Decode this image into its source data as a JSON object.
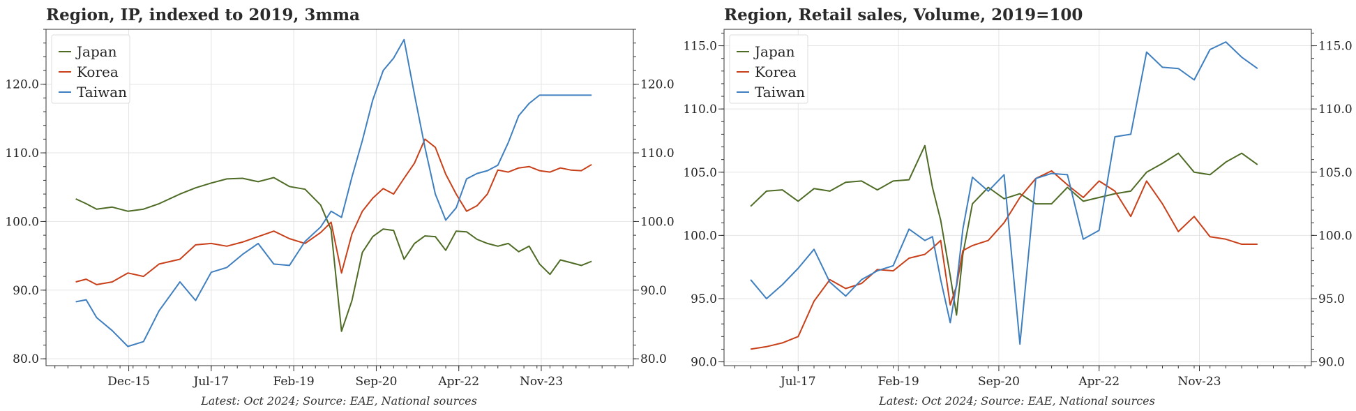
{
  "chart_data": [
    {
      "type": "line",
      "title": "Region, IP, indexed to 2019, 3mma",
      "source": "Latest: Oct 2024; Source: EAE, National sources",
      "ylim": [
        79,
        128
      ],
      "xlim": [
        2014.33,
        2025.6
      ],
      "grid": true,
      "legend": "top-left",
      "y_ticks": [
        80.0,
        90.0,
        100.0,
        110.0,
        120.0
      ],
      "y_tick_labels": [
        "80.0",
        "90.0",
        "100.0",
        "110.0",
        "120.0"
      ],
      "x_ticks": [
        2015.917,
        2017.5,
        2019.083,
        2020.667,
        2022.25,
        2023.833
      ],
      "x_tick_labels": [
        "Dec-15",
        "Jul-17",
        "Feb-19",
        "Sep-20",
        "Apr-22",
        "Nov-23"
      ],
      "series": [
        {
          "name": "Japan",
          "color": "#4e6b25",
          "x": [
            2014.9,
            2015.1,
            2015.3,
            2015.6,
            2015.9,
            2016.2,
            2016.5,
            2016.9,
            2017.2,
            2017.5,
            2017.8,
            2018.1,
            2018.4,
            2018.7,
            2019.0,
            2019.3,
            2019.6,
            2019.8,
            2020.0,
            2020.2,
            2020.4,
            2020.6,
            2020.8,
            2021.0,
            2021.2,
            2021.4,
            2021.6,
            2021.8,
            2022.0,
            2022.2,
            2022.4,
            2022.6,
            2022.8,
            2023.0,
            2023.2,
            2023.4,
            2023.6,
            2023.8,
            2024.0,
            2024.2,
            2024.4,
            2024.6,
            2024.8
          ],
          "values": [
            103.3,
            102.6,
            101.8,
            102.1,
            101.5,
            101.8,
            102.6,
            104.0,
            104.9,
            105.6,
            106.2,
            106.3,
            105.8,
            106.4,
            105.1,
            104.7,
            102.4,
            98.8,
            84.0,
            88.5,
            95.5,
            97.8,
            98.9,
            98.7,
            94.5,
            96.8,
            97.9,
            97.8,
            95.8,
            98.6,
            98.5,
            97.4,
            96.8,
            96.4,
            96.8,
            95.6,
            96.4,
            93.8,
            92.3,
            94.4,
            94.0,
            93.6,
            94.2
          ]
        },
        {
          "name": "Korea",
          "color": "#c8401a",
          "x": [
            2014.9,
            2015.1,
            2015.3,
            2015.6,
            2015.9,
            2016.2,
            2016.5,
            2016.9,
            2017.2,
            2017.5,
            2017.8,
            2018.1,
            2018.4,
            2018.7,
            2019.0,
            2019.3,
            2019.6,
            2019.8,
            2020.0,
            2020.2,
            2020.4,
            2020.6,
            2020.8,
            2021.0,
            2021.2,
            2021.4,
            2021.6,
            2021.8,
            2022.0,
            2022.2,
            2022.4,
            2022.6,
            2022.8,
            2023.0,
            2023.2,
            2023.4,
            2023.6,
            2023.8,
            2024.0,
            2024.2,
            2024.4,
            2024.6,
            2024.8
          ],
          "values": [
            91.2,
            91.6,
            90.8,
            91.2,
            92.5,
            92.0,
            93.8,
            94.5,
            96.6,
            96.8,
            96.4,
            97.0,
            97.8,
            98.6,
            97.5,
            96.8,
            98.4,
            99.9,
            92.5,
            98.2,
            101.5,
            103.4,
            104.8,
            104.0,
            106.3,
            108.5,
            112.0,
            110.8,
            106.9,
            104.0,
            101.5,
            102.3,
            104.0,
            107.5,
            107.2,
            107.8,
            108.0,
            107.4,
            107.2,
            107.8,
            107.5,
            107.4,
            108.3
          ]
        },
        {
          "name": "Taiwan",
          "color": "#3f7fbf",
          "x": [
            2014.9,
            2015.1,
            2015.3,
            2015.6,
            2015.9,
            2016.2,
            2016.5,
            2016.9,
            2017.2,
            2017.5,
            2017.8,
            2018.1,
            2018.4,
            2018.7,
            2019.0,
            2019.3,
            2019.6,
            2019.8,
            2020.0,
            2020.2,
            2020.4,
            2020.6,
            2020.8,
            2021.0,
            2021.2,
            2021.4,
            2021.6,
            2021.8,
            2022.0,
            2022.2,
            2022.4,
            2022.6,
            2022.8,
            2023.0,
            2023.2,
            2023.4,
            2023.6,
            2023.8,
            2024.0,
            2024.2,
            2024.4,
            2024.6,
            2024.8
          ],
          "values": [
            88.3,
            88.6,
            86.0,
            84.1,
            81.8,
            82.5,
            87.0,
            91.2,
            88.5,
            92.6,
            93.3,
            95.2,
            96.8,
            93.8,
            93.6,
            97.1,
            99.2,
            101.5,
            100.6,
            106.5,
            111.8,
            117.7,
            122.0,
            123.8,
            126.5,
            118.5,
            110.8,
            104.0,
            100.2,
            102.0,
            106.2,
            107.0,
            107.4,
            108.2,
            111.5,
            115.4,
            117.2,
            118.4,
            118.4,
            118.4,
            118.4,
            118.4,
            118.4
          ]
        }
      ]
    },
    {
      "type": "line",
      "title": "Region, Retail sales, Volume, 2019=100",
      "source": "Latest: Oct 2024; Source: EAE, National sources",
      "ylim": [
        89.7,
        116.3
      ],
      "xlim": [
        2016.33,
        2025.6
      ],
      "grid": true,
      "legend": "top-left",
      "y_ticks": [
        90.0,
        95.0,
        100.0,
        105.0,
        110.0,
        115.0
      ],
      "y_tick_labels": [
        "90.0",
        "95.0",
        "100.0",
        "105.0",
        "110.0",
        "115.0"
      ],
      "x_ticks": [
        2017.5,
        2019.083,
        2020.667,
        2022.25,
        2023.833
      ],
      "x_tick_labels": [
        "Jul-17",
        "Feb-19",
        "Sep-20",
        "Apr-22",
        "Nov-23"
      ],
      "series": [
        {
          "name": "Japan",
          "color": "#4e6b25",
          "x": [
            2016.75,
            2017.0,
            2017.25,
            2017.5,
            2017.75,
            2018.0,
            2018.25,
            2018.5,
            2018.75,
            2019.0,
            2019.25,
            2019.5,
            2019.62,
            2019.75,
            2019.9,
            2020.0,
            2020.1,
            2020.25,
            2020.5,
            2020.75,
            2021.0,
            2021.25,
            2021.5,
            2021.75,
            2022.0,
            2022.25,
            2022.5,
            2022.75,
            2023.0,
            2023.25,
            2023.5,
            2023.75,
            2024.0,
            2024.25,
            2024.5,
            2024.75
          ],
          "values": [
            102.3,
            103.5,
            103.6,
            102.7,
            103.7,
            103.5,
            104.2,
            104.3,
            103.6,
            104.3,
            104.4,
            107.1,
            103.8,
            101.2,
            96.8,
            93.7,
            98.5,
            102.5,
            103.8,
            102.9,
            103.3,
            102.5,
            102.5,
            103.8,
            102.7,
            103.0,
            103.3,
            103.5,
            105.0,
            105.7,
            106.5,
            105.0,
            104.8,
            105.8,
            106.5,
            105.6
          ]
        },
        {
          "name": "Korea",
          "color": "#c8401a",
          "x": [
            2016.75,
            2017.0,
            2017.25,
            2017.5,
            2017.75,
            2018.0,
            2018.25,
            2018.5,
            2018.75,
            2019.0,
            2019.25,
            2019.5,
            2019.62,
            2019.75,
            2019.9,
            2020.0,
            2020.1,
            2020.25,
            2020.5,
            2020.75,
            2021.0,
            2021.25,
            2021.5,
            2021.75,
            2022.0,
            2022.25,
            2022.5,
            2022.75,
            2023.0,
            2023.25,
            2023.5,
            2023.75,
            2024.0,
            2024.25,
            2024.5,
            2024.75
          ],
          "values": [
            91.0,
            91.2,
            91.5,
            92.0,
            94.8,
            96.5,
            95.8,
            96.2,
            97.3,
            97.2,
            98.2,
            98.5,
            99.0,
            99.6,
            94.5,
            96.0,
            98.8,
            99.2,
            99.6,
            101.0,
            103.0,
            104.5,
            105.1,
            104.0,
            103.0,
            104.3,
            103.5,
            101.5,
            104.3,
            102.5,
            100.3,
            101.5,
            99.9,
            99.7,
            99.3,
            99.3
          ]
        },
        {
          "name": "Taiwan",
          "color": "#3f7fbf",
          "x": [
            2016.75,
            2017.0,
            2017.25,
            2017.5,
            2017.75,
            2018.0,
            2018.25,
            2018.5,
            2018.75,
            2019.0,
            2019.25,
            2019.5,
            2019.62,
            2019.75,
            2019.9,
            2020.0,
            2020.1,
            2020.25,
            2020.5,
            2020.75,
            2021.0,
            2021.25,
            2021.5,
            2021.75,
            2022.0,
            2022.25,
            2022.5,
            2022.75,
            2023.0,
            2023.25,
            2023.5,
            2023.75,
            2024.0,
            2024.25,
            2024.5,
            2024.75
          ],
          "values": [
            96.5,
            95.0,
            96.1,
            97.4,
            98.9,
            96.3,
            95.2,
            96.5,
            97.2,
            97.6,
            100.5,
            99.6,
            99.9,
            96.5,
            93.1,
            96.1,
            100.5,
            104.6,
            103.5,
            104.8,
            91.4,
            104.5,
            104.9,
            104.8,
            99.7,
            100.4,
            107.8,
            108.0,
            114.5,
            113.3,
            113.2,
            112.3,
            114.7,
            115.3,
            114.1,
            113.2
          ]
        }
      ]
    }
  ]
}
